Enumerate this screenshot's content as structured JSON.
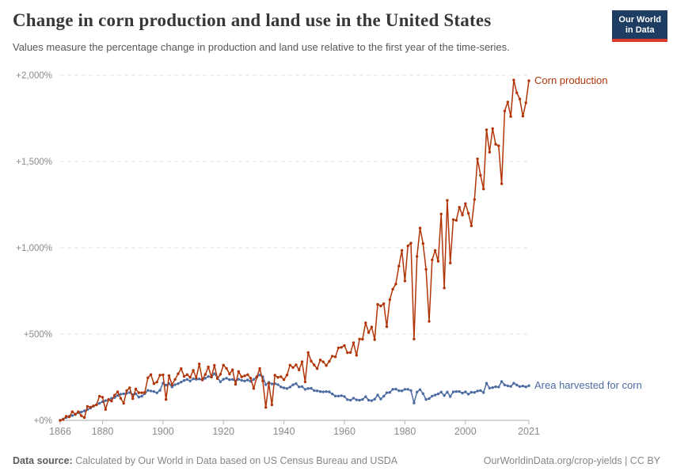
{
  "header": {
    "title": "Change in corn production and land use in the United States",
    "subtitle": "Values measure the percentage change in production and land use relative to the first year of the time-series.",
    "logo": {
      "line1": "Our World",
      "line2": "in Data",
      "bg_color": "#1d3d63",
      "stripe_color": "#d93a2b"
    }
  },
  "chart_data": {
    "type": "line",
    "title": "Change in corn production and land use in the United States",
    "xlabel": "",
    "ylabel": "",
    "ylim": [
      0,
      2000
    ],
    "yticks": [
      0,
      500,
      1000,
      1500,
      2000
    ],
    "ytick_labels": [
      "+0%",
      "+500%",
      "+1,000%",
      "+1,500%",
      "+2,000%"
    ],
    "xticks": [
      1866,
      1880,
      1900,
      1920,
      1940,
      1960,
      1980,
      2000,
      2021
    ],
    "grid": "horizontal-dashed",
    "legend_position": "end-of-line-labels",
    "x_years": {
      "start": 1866,
      "end": 2021,
      "step": 1
    },
    "series": [
      {
        "name": "Corn production",
        "color": "#B13507",
        "unit": "% change vs 1866",
        "values": [
          0,
          5,
          24,
          20,
          50,
          36,
          50,
          27,
          16,
          81,
          76,
          84,
          90,
          140,
          134,
          63,
          121,
          112,
          146,
          165,
          128,
          99,
          172,
          189,
          126,
          182,
          160,
          160,
          162,
          247,
          265,
          213,
          222,
          262,
          264,
          121,
          259,
          207,
          237,
          270,
          300,
          255,
          265,
          249,
          290,
          246,
          327,
          235,
          266,
          310,
          251,
          319,
          242,
          267,
          320,
          301,
          269,
          293,
          209,
          283,
          252,
          258,
          265,
          244,
          185,
          250,
          301,
          228,
          75,
          214,
          90,
          262,
          249,
          253,
          236,
          263,
          320,
          306,
          322,
          292,
          340,
          223,
          393,
          343,
          321,
          300,
          350,
          339,
          318,
          342,
          372,
          368,
          420,
          423,
          434,
          392,
          393,
          450,
          377,
          471,
          470,
          565,
          509,
          541,
          468,
          672,
          663,
          676,
          543,
          699,
          760,
          790,
          894,
          985,
          808,
          1011,
          1027,
          471,
          950,
          1114,
          1025,
          875,
          574,
          930,
          985,
          922,
          1196,
          767,
          1275,
          912,
          1163,
          1159,
          1235,
          1190,
          1256,
          1200,
          1127,
          1280,
          1515,
          1420,
          1341,
          1684,
          1554,
          1691,
          1600,
          1591,
          1371,
          1792,
          1845,
          1761,
          1972,
          1898,
          1862,
          1763,
          1840,
          1968
        ]
      },
      {
        "name": "Area harvested for corn",
        "color": "#4C6BA0",
        "unit": "% change vs 1866",
        "values": [
          0,
          8,
          16,
          24,
          28,
          34,
          45,
          48,
          55,
          63,
          71,
          82,
          91,
          99,
          108,
          114,
          119,
          128,
          132,
          144,
          152,
          154,
          157,
          161,
          149,
          154,
          135,
          140,
          155,
          174,
          170,
          167,
          159,
          174,
          216,
          204,
          213,
          194,
          207,
          213,
          222,
          231,
          237,
          228,
          241,
          238,
          240,
          234,
          244,
          254,
          251,
          270,
          248,
          224,
          238,
          244,
          236,
          237,
          228,
          238,
          232,
          228,
          234,
          226,
          237,
          253,
          263,
          253,
          207,
          220,
          211,
          213,
          207,
          194,
          188,
          185,
          193,
          206,
          213,
          194,
          196,
          180,
          185,
          186,
          173,
          171,
          167,
          165,
          167,
          165,
          153,
          141,
          141,
          143,
          138,
          120,
          117,
          129,
          119,
          117,
          121,
          137,
          117,
          114,
          123,
          147,
          124,
          140,
          160,
          162,
          180,
          181,
          172,
          171,
          180,
          180,
          173,
          101,
          164,
          178,
          155,
          121,
          126,
          141,
          147,
          153,
          164,
          144,
          164,
          138,
          165,
          167,
          167,
          158,
          165,
          152,
          163,
          162,
          170,
          173,
          161,
          215,
          187,
          190,
          195,
          193,
          225,
          205,
          200,
          197,
          215,
          205,
          196,
          199,
          194,
          201
        ]
      }
    ]
  },
  "footer": {
    "source_label": "Data source:",
    "source_text": "Calculated by Our World in Data based on US Census Bureau and USDA",
    "url": "OurWorldinData.org/crop-yields",
    "separator": "|",
    "license": "CC BY"
  }
}
